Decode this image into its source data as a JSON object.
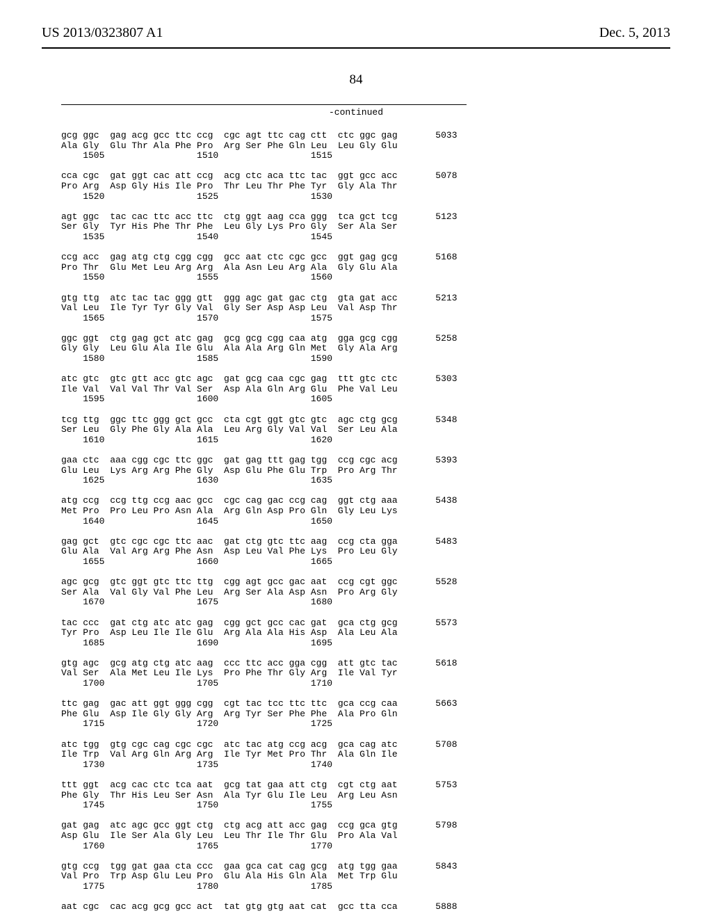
{
  "header": {
    "left": "US 2013/0323807 A1",
    "right": "Dec. 5, 2013",
    "pagenum": "84",
    "continued": "-continued"
  },
  "blocks": [
    {
      "codon": "gcg ggc  gag acg gcc ttc ccg  cgc agt ttc cag ctt  ctc ggc gag",
      "aa": "Ala Gly  Glu Thr Ala Phe Pro  Arg Ser Phe Gln Leu  Leu Gly Glu",
      "nums": "    1505                 1510                 1515",
      "end": "5033"
    },
    {
      "codon": "cca cgc  gat ggt cac att ccg  acg ctc aca ttc tac  ggt gcc acc",
      "aa": "Pro Arg  Asp Gly His Ile Pro  Thr Leu Thr Phe Tyr  Gly Ala Thr",
      "nums": "    1520                 1525                 1530",
      "end": "5078"
    },
    {
      "codon": "agt ggc  tac cac ttc acc ttc  ctg ggt aag cca ggg  tca gct tcg",
      "aa": "Ser Gly  Tyr His Phe Thr Phe  Leu Gly Lys Pro Gly  Ser Ala Ser",
      "nums": "    1535                 1540                 1545",
      "end": "5123"
    },
    {
      "codon": "ccg acc  gag atg ctg cgg cgg  gcc aat ctc cgc gcc  ggt gag gcg",
      "aa": "Pro Thr  Glu Met Leu Arg Arg  Ala Asn Leu Arg Ala  Gly Glu Ala",
      "nums": "    1550                 1555                 1560",
      "end": "5168"
    },
    {
      "codon": "gtg ttg  atc tac tac ggg gtt  ggg agc gat gac ctg  gta gat acc",
      "aa": "Val Leu  Ile Tyr Tyr Gly Val  Gly Ser Asp Asp Leu  Val Asp Thr",
      "nums": "    1565                 1570                 1575",
      "end": "5213"
    },
    {
      "codon": "ggc ggt  ctg gag gct atc gag  gcg gcg cgg caa atg  gga gcg cgg",
      "aa": "Gly Gly  Leu Glu Ala Ile Glu  Ala Ala Arg Gln Met  Gly Ala Arg",
      "nums": "    1580                 1585                 1590",
      "end": "5258"
    },
    {
      "codon": "atc gtc  gtc gtt acc gtc agc  gat gcg caa cgc gag  ttt gtc ctc",
      "aa": "Ile Val  Val Val Thr Val Ser  Asp Ala Gln Arg Glu  Phe Val Leu",
      "nums": "    1595                 1600                 1605",
      "end": "5303"
    },
    {
      "codon": "tcg ttg  ggc ttc ggg gct gcc  cta cgt ggt gtc gtc  agc ctg gcg",
      "aa": "Ser Leu  Gly Phe Gly Ala Ala  Leu Arg Gly Val Val  Ser Leu Ala",
      "nums": "    1610                 1615                 1620",
      "end": "5348"
    },
    {
      "codon": "gaa ctc  aaa cgg cgc ttc ggc  gat gag ttt gag tgg  ccg cgc acg",
      "aa": "Glu Leu  Lys Arg Arg Phe Gly  Asp Glu Phe Glu Trp  Pro Arg Thr",
      "nums": "    1625                 1630                 1635",
      "end": "5393"
    },
    {
      "codon": "atg ccg  ccg ttg ccg aac gcc  cgc cag gac ccg cag  ggt ctg aaa",
      "aa": "Met Pro  Pro Leu Pro Asn Ala  Arg Gln Asp Pro Gln  Gly Leu Lys",
      "nums": "    1640                 1645                 1650",
      "end": "5438"
    },
    {
      "codon": "gag gct  gtc cgc cgc ttc aac  gat ctg gtc ttc aag  ccg cta gga",
      "aa": "Glu Ala  Val Arg Arg Phe Asn  Asp Leu Val Phe Lys  Pro Leu Gly",
      "nums": "    1655                 1660                 1665",
      "end": "5483"
    },
    {
      "codon": "agc gcg  gtc ggt gtc ttc ttg  cgg agt gcc gac aat  ccg cgt ggc",
      "aa": "Ser Ala  Val Gly Val Phe Leu  Arg Ser Ala Asp Asn  Pro Arg Gly",
      "nums": "    1670                 1675                 1680",
      "end": "5528"
    },
    {
      "codon": "tac ccc  gat ctg atc atc gag  cgg gct gcc cac gat  gca ctg gcg",
      "aa": "Tyr Pro  Asp Leu Ile Ile Glu  Arg Ala Ala His Asp  Ala Leu Ala",
      "nums": "    1685                 1690                 1695",
      "end": "5573"
    },
    {
      "codon": "gtg agc  gcg atg ctg atc aag  ccc ttc acc gga cgg  att gtc tac",
      "aa": "Val Ser  Ala Met Leu Ile Lys  Pro Phe Thr Gly Arg  Ile Val Tyr",
      "nums": "    1700                 1705                 1710",
      "end": "5618"
    },
    {
      "codon": "ttc gag  gac att ggt ggg cgg  cgt tac tcc ttc ttc  gca ccg caa",
      "aa": "Phe Glu  Asp Ile Gly Gly Arg  Arg Tyr Ser Phe Phe  Ala Pro Gln",
      "nums": "    1715                 1720                 1725",
      "end": "5663"
    },
    {
      "codon": "atc tgg  gtg cgc cag cgc cgc  atc tac atg ccg acg  gca cag atc",
      "aa": "Ile Trp  Val Arg Gln Arg Arg  Ile Tyr Met Pro Thr  Ala Gln Ile",
      "nums": "    1730                 1735                 1740",
      "end": "5708"
    },
    {
      "codon": "ttt ggt  acg cac ctc tca aat  gcg tat gaa att ctg  cgt ctg aat",
      "aa": "Phe Gly  Thr His Leu Ser Asn  Ala Tyr Glu Ile Leu  Arg Leu Asn",
      "nums": "    1745                 1750                 1755",
      "end": "5753"
    },
    {
      "codon": "gat gag  atc agc gcc ggt ctg  ctg acg att acc gag  ccg gca gtg",
      "aa": "Asp Glu  Ile Ser Ala Gly Leu  Leu Thr Ile Thr Glu  Pro Ala Val",
      "nums": "    1760                 1765                 1770",
      "end": "5798"
    },
    {
      "codon": "gtg ccg  tgg gat gaa cta ccc  gaa gca cat cag gcg  atg tgg gaa",
      "aa": "Val Pro  Trp Asp Glu Leu Pro  Glu Ala His Gln Ala  Met Trp Glu",
      "nums": "    1775                 1780                 1785",
      "end": "5843"
    }
  ],
  "tail": {
    "codon": "aat cgc  cac acg gcg gcc act  tat gtg gtg aat cat  gcc tta cca",
    "end": "5888"
  },
  "layout": {
    "codonPad": 57,
    "endCol": 69
  }
}
